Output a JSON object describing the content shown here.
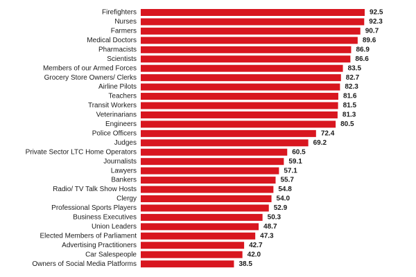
{
  "chart_data": {
    "type": "bar",
    "orientation": "horizontal",
    "color": "#d8161f",
    "categories": [
      "Firefighters",
      "Nurses",
      "Farmers",
      "Medical Doctors",
      "Pharmacists",
      "Scientists",
      "Members of our Armed Forces",
      "Grocery Store Owners/ Clerks",
      "Airline Pilots",
      "Teachers",
      "Transit Workers",
      "Veterinarians",
      "Engineers",
      "Police Officers",
      "Judges",
      "Private Sector LTC Home Operators",
      "Journalists",
      "Lawyers",
      "Bankers",
      "Radio/ TV Talk Show Hosts",
      "Clergy",
      "Professional Sports Players",
      "Business Executives",
      "Union Leaders",
      "Elected Members of Parliament",
      "Advertising Practitioners",
      "Car Salespeople",
      "Owners of Social Media Platforms"
    ],
    "values": [
      92.5,
      92.3,
      90.7,
      89.6,
      86.9,
      86.6,
      83.5,
      82.7,
      82.3,
      81.6,
      81.5,
      81.3,
      80.5,
      72.4,
      69.2,
      60.5,
      59.1,
      57.1,
      55.7,
      54.8,
      54.0,
      52.9,
      50.3,
      48.7,
      47.3,
      42.7,
      42.0,
      38.5
    ],
    "value_labels": [
      "92.5",
      "92.3",
      "90.7",
      "89.6",
      "86.9",
      "86.6",
      "83.5",
      "82.7",
      "82.3",
      "81.6",
      "81.5",
      "81.3",
      "80.5",
      "72.4",
      "69.2",
      "60.5",
      "59.1",
      "57.1",
      "55.7",
      "54.8",
      "54.0",
      "52.9",
      "50.3",
      "48.7",
      "47.3",
      "42.7",
      "42.0",
      "38.5"
    ]
  }
}
